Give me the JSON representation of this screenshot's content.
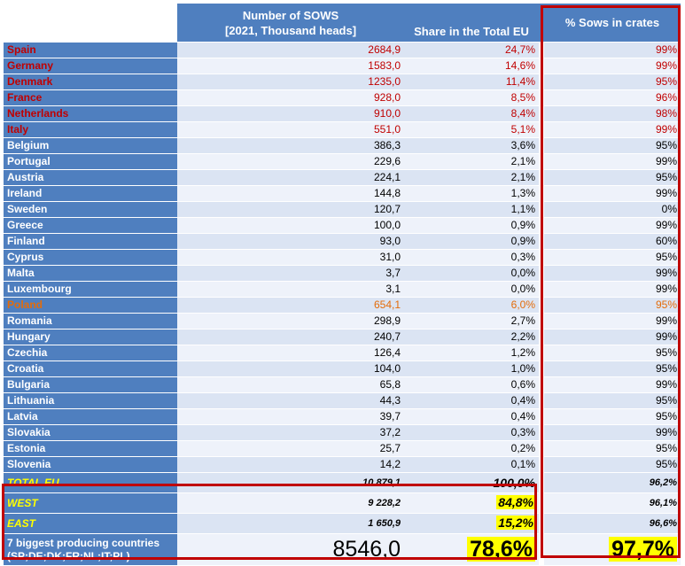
{
  "header": {
    "sows_line1": "Number of SOWS",
    "sows_line2": "[2021, Thousand heads]",
    "share": "Share in the Total EU",
    "crates": "% Sows in crates"
  },
  "rows": [
    {
      "country": "Spain",
      "sows": "2684,9",
      "share": "24,7%",
      "crates": "99%",
      "style": "red"
    },
    {
      "country": "Germany",
      "sows": "1583,0",
      "share": "14,6%",
      "crates": "99%",
      "style": "red"
    },
    {
      "country": "Denmark",
      "sows": "1235,0",
      "share": "11,4%",
      "crates": "95%",
      "style": "red"
    },
    {
      "country": "France",
      "sows": "928,0",
      "share": "8,5%",
      "crates": "96%",
      "style": "red"
    },
    {
      "country": "Netherlands",
      "sows": "910,0",
      "share": "8,4%",
      "crates": "98%",
      "style": "red"
    },
    {
      "country": "Italy",
      "sows": "551,0",
      "share": "5,1%",
      "crates": "99%",
      "style": "red"
    },
    {
      "country": "Belgium",
      "sows": "386,3",
      "share": "3,6%",
      "crates": "95%",
      "style": ""
    },
    {
      "country": "Portugal",
      "sows": "229,6",
      "share": "2,1%",
      "crates": "99%",
      "style": ""
    },
    {
      "country": "Austria",
      "sows": "224,1",
      "share": "2,1%",
      "crates": "95%",
      "style": ""
    },
    {
      "country": "Ireland",
      "sows": "144,8",
      "share": "1,3%",
      "crates": "99%",
      "style": ""
    },
    {
      "country": "Sweden",
      "sows": "120,7",
      "share": "1,1%",
      "crates": "0%",
      "style": ""
    },
    {
      "country": "Greece",
      "sows": "100,0",
      "share": "0,9%",
      "crates": "99%",
      "style": ""
    },
    {
      "country": "Finland",
      "sows": "93,0",
      "share": "0,9%",
      "crates": "60%",
      "style": ""
    },
    {
      "country": "Cyprus",
      "sows": "31,0",
      "share": "0,3%",
      "crates": "95%",
      "style": ""
    },
    {
      "country": "Malta",
      "sows": "3,7",
      "share": "0,0%",
      "crates": "99%",
      "style": ""
    },
    {
      "country": "Luxembourg",
      "sows": "3,1",
      "share": "0,0%",
      "crates": "99%",
      "style": ""
    },
    {
      "country": "Poland",
      "sows": "654,1",
      "share": "6,0%",
      "crates": "95%",
      "style": "orange"
    },
    {
      "country": "Romania",
      "sows": "298,9",
      "share": "2,7%",
      "crates": "99%",
      "style": ""
    },
    {
      "country": "Hungary",
      "sows": "240,7",
      "share": "2,2%",
      "crates": "99%",
      "style": ""
    },
    {
      "country": "Czechia",
      "sows": "126,4",
      "share": "1,2%",
      "crates": "95%",
      "style": ""
    },
    {
      "country": "Croatia",
      "sows": "104,0",
      "share": "1,0%",
      "crates": "95%",
      "style": ""
    },
    {
      "country": "Bulgaria",
      "sows": "65,8",
      "share": "0,6%",
      "crates": "99%",
      "style": ""
    },
    {
      "country": "Lithuania",
      "sows": "44,3",
      "share": "0,4%",
      "crates": "95%",
      "style": ""
    },
    {
      "country": "Latvia",
      "sows": "39,7",
      "share": "0,4%",
      "crates": "95%",
      "style": ""
    },
    {
      "country": "Slovakia",
      "sows": "37,2",
      "share": "0,3%",
      "crates": "99%",
      "style": ""
    },
    {
      "country": "Estonia",
      "sows": "25,7",
      "share": "0,2%",
      "crates": "95%",
      "style": ""
    },
    {
      "country": "Slovenia",
      "sows": "14,2",
      "share": "0,1%",
      "crates": "95%",
      "style": ""
    }
  ],
  "total": {
    "label": "TOTAL EU",
    "sows": "10 879,1",
    "share": "100,0%",
    "crates": "96,2%"
  },
  "west": {
    "label": "WEST",
    "sows": "9 228,2",
    "share": "84,8%",
    "crates": "96,1%"
  },
  "east": {
    "label": "EAST",
    "sows": "1 650,9",
    "share": "15,2%",
    "crates": "96,6%"
  },
  "biggest": {
    "label_line1": "7 biggest producing countries",
    "label_line2": "(SP;DE;DK;FR;NL;IT;PL)",
    "sows": "8546,0",
    "share": "78,6%",
    "crates": "97,7%"
  },
  "colors": {
    "header_blue": "#4f7fbf",
    "highlight_red": "#c00000",
    "poland_orange": "#e46c0a",
    "highlight_yellow": "#ffff00"
  }
}
